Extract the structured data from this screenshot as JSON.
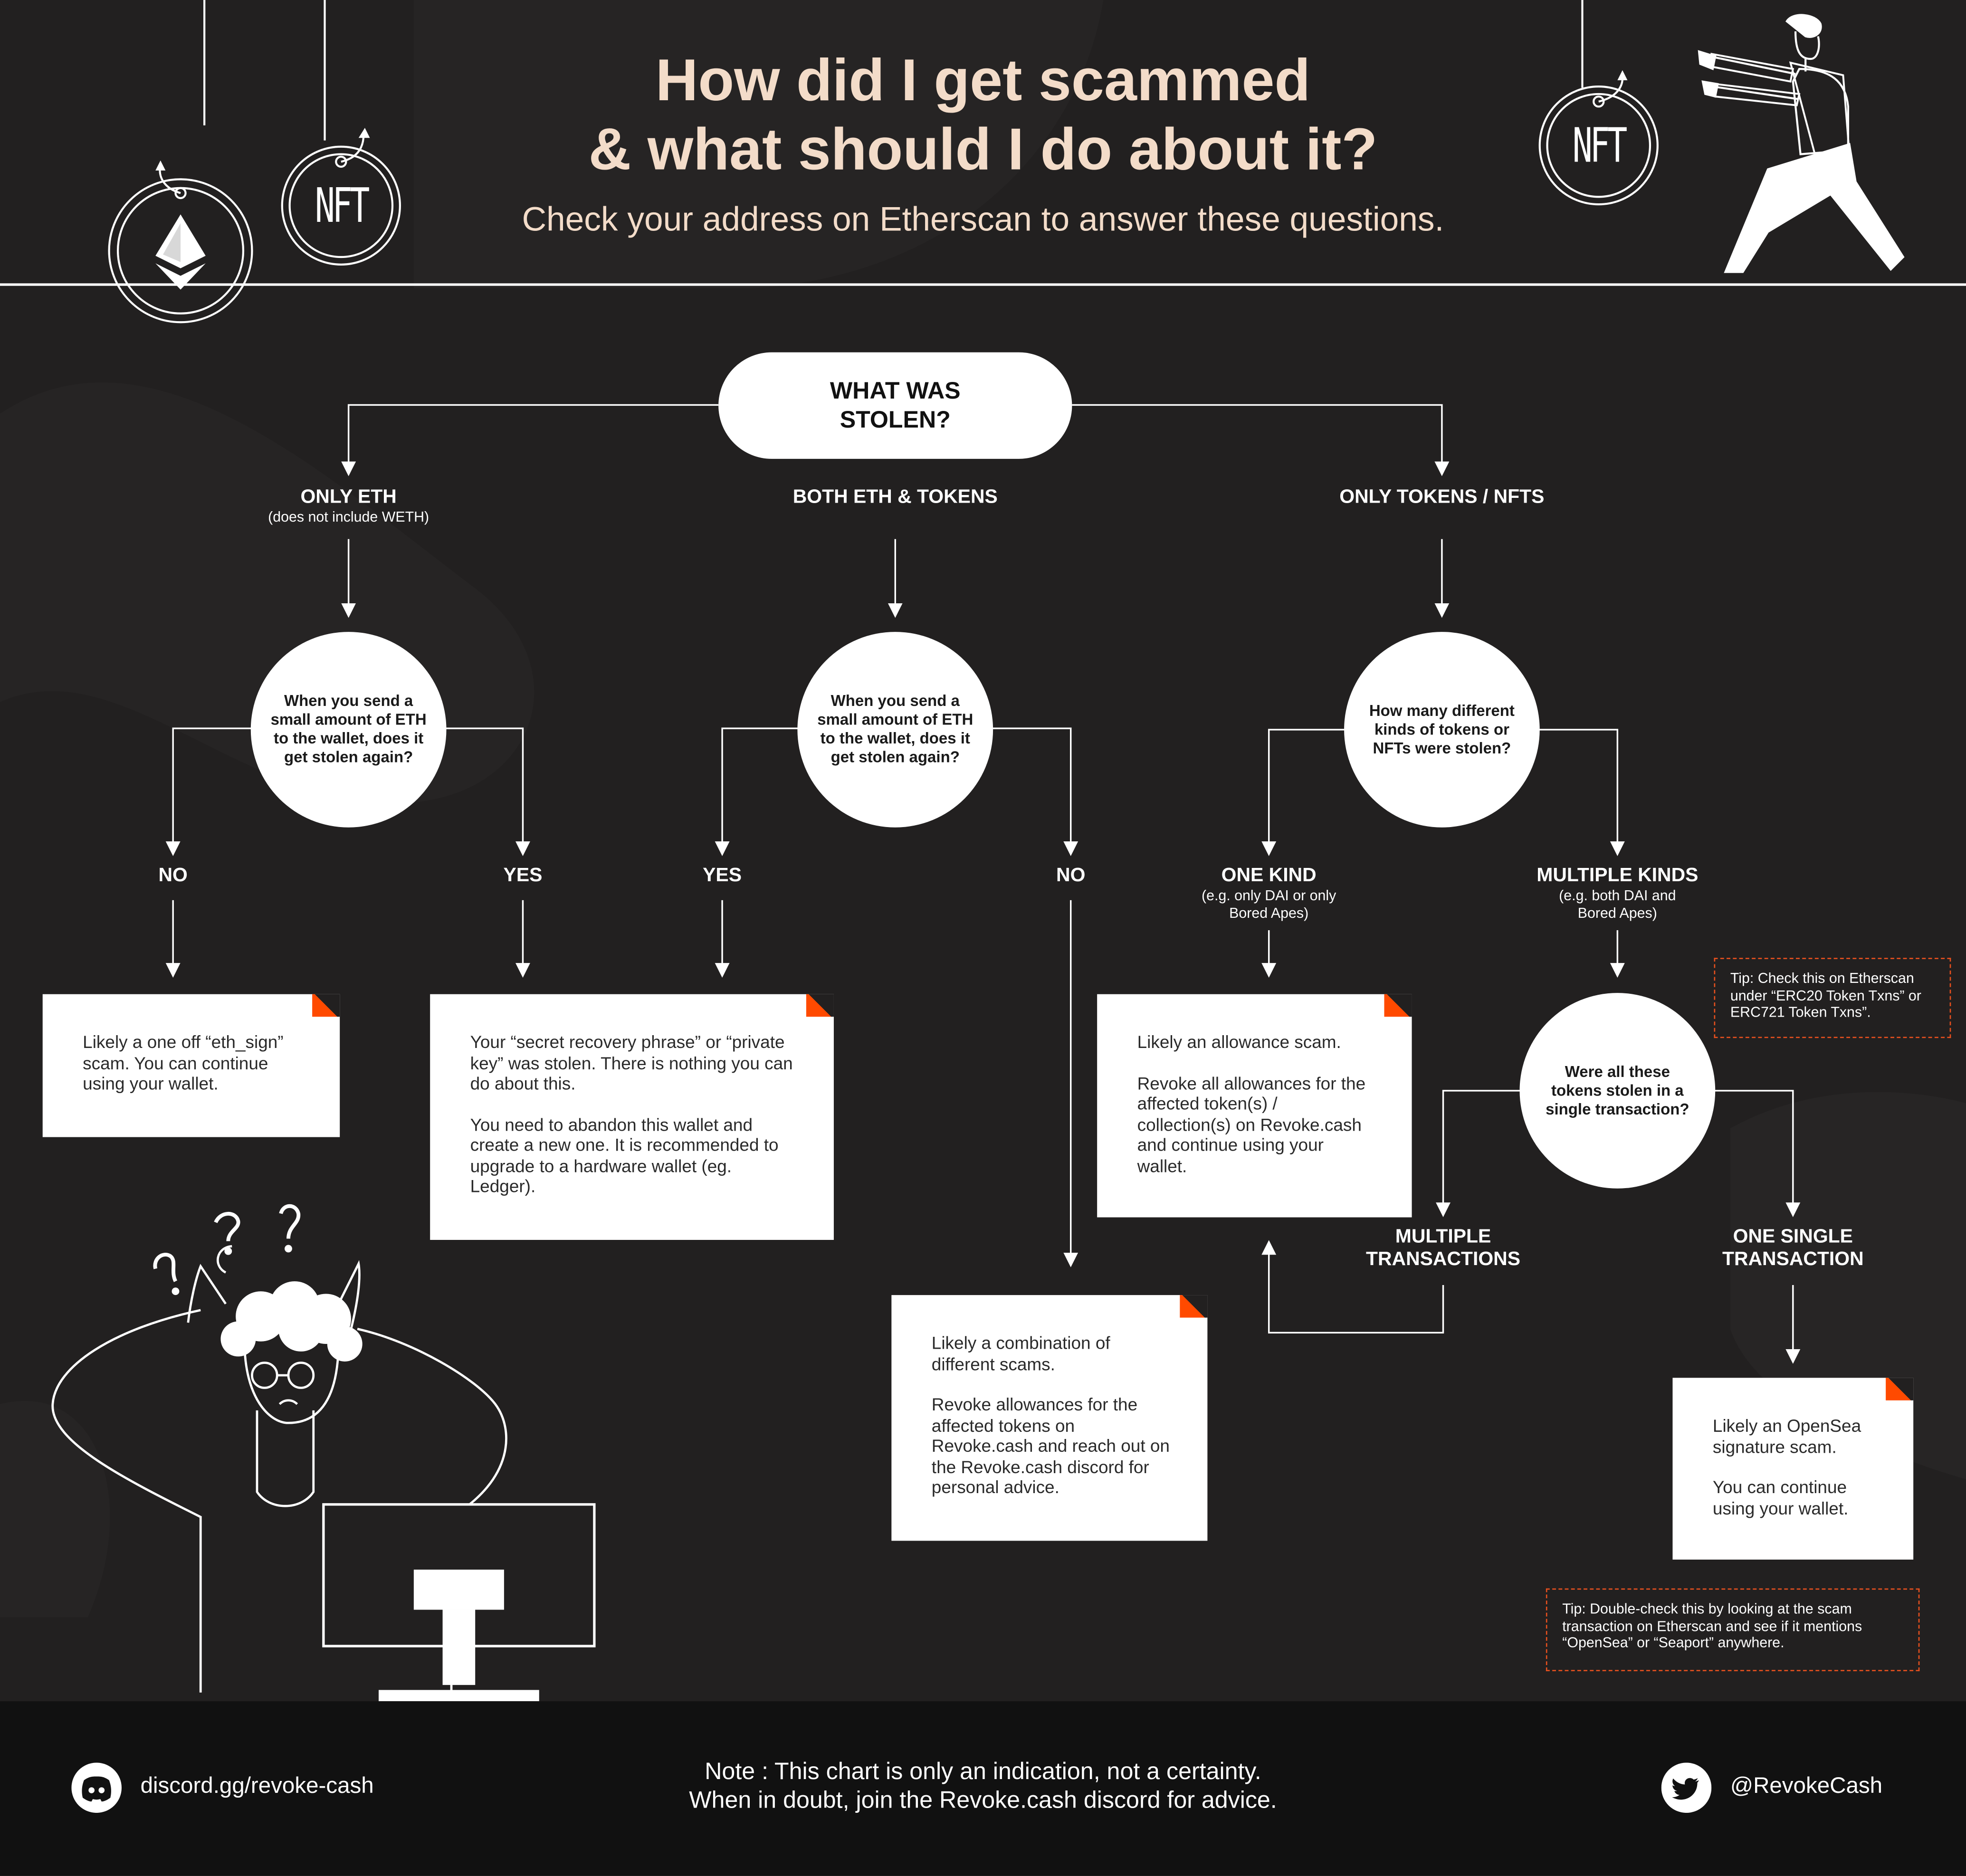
{
  "header": {
    "title_line1": "How did I get scammed",
    "title_line2": "& what should I do about it?",
    "subtitle": "Check your address on Etherscan to answer these questions."
  },
  "decor": {
    "nft_badge_left": "NFT",
    "nft_badge_right": "NFT",
    "question_marks": [
      "?",
      "?",
      "?"
    ]
  },
  "flow": {
    "root": "WHAT WAS STOLEN?",
    "branches": {
      "only_eth": {
        "label": "ONLY ETH",
        "sub": "(does not include WETH)"
      },
      "both": {
        "label": "BOTH ETH & TOKENS"
      },
      "only_tokens": {
        "label": "ONLY TOKENS / NFTS"
      }
    },
    "q_send_eth_left": "When you send a small amount of ETH to the wallet, does it get stolen again?",
    "q_send_eth_mid": "When you send a small amount of ETH to the wallet, does it get stolen again?",
    "q_how_many": "How many different kinds of tokens or NFTs were stolen?",
    "q_single_tx": "Were all these tokens stolen in a single transaction?",
    "answers": {
      "left_no": "NO",
      "left_yes": "YES",
      "mid_yes": "YES",
      "mid_no": "NO",
      "one_kind": "ONE KIND",
      "one_kind_sub": "(e.g. only DAI or only Bored Apes)",
      "multi_kinds": "MULTIPLE KINDS",
      "multi_kinds_sub": "(e.g. both DAI and Bored Apes)",
      "multi_tx": "MULTIPLE TRANSACTIONS",
      "one_tx": "ONE SINGLE TRANSACTION"
    },
    "cards": {
      "eth_sign": [
        "Likely a one off “eth_sign” scam. You can continue using your wallet."
      ],
      "seed_phrase": [
        "Your “secret recovery phrase” or “private key” was stolen. There is nothing you can do about this.",
        "You need to abandon this wallet and create a new one. It is recommended to upgrade to a hardware wallet (eg. Ledger)."
      ],
      "combination": [
        "Likely a combination of different scams.",
        "Revoke allowances for the affected tokens on Revoke.cash and reach out on the Revoke.cash discord for personal advice."
      ],
      "allowance": [
        "Likely an allowance scam.",
        "Revoke all allowances for the affected token(s) / collection(s) on Revoke.cash and continue using your wallet."
      ],
      "opensea": [
        "Likely an OpenSea signature scam.",
        "You can continue using your wallet."
      ]
    },
    "tips": {
      "erc": "Tip: Check this on Etherscan under “ERC20 Token Txns” or ERC721 Token Txns”.",
      "seaport": "Tip: Double-check this by looking at the scam transaction on Etherscan and see if it mentions “OpenSea” or “Seaport” anywhere."
    }
  },
  "footer": {
    "discord": "discord.gg/revoke-cash",
    "note_line1": "Note : This chart is only an indication, not a certainty.",
    "note_line2": "When in doubt, join the Revoke.cash discord for advice.",
    "twitter": "@RevokeCash"
  },
  "colors": {
    "background": "#222020",
    "title": "#f3dcc9",
    "accent": "#ff4a00",
    "footer": "#111111"
  }
}
